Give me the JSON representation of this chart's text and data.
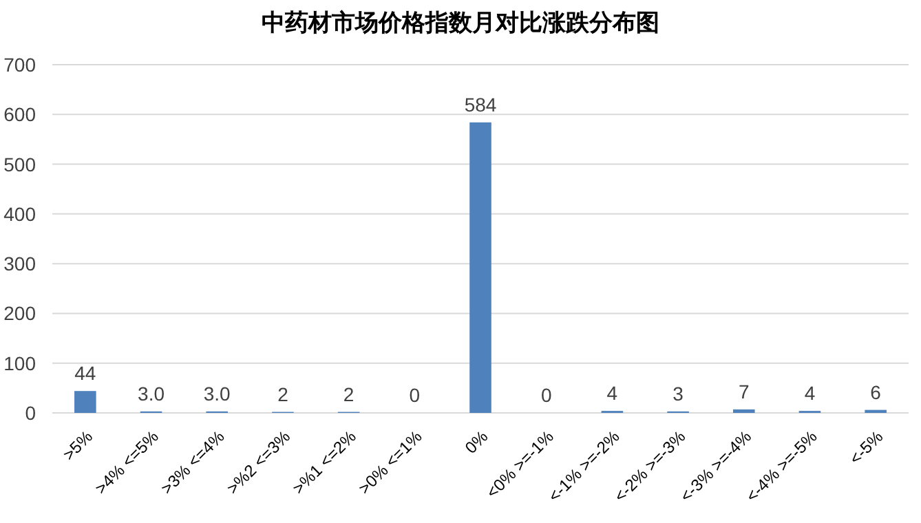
{
  "chart_data": {
    "type": "bar",
    "title": "中药材市场价格指数月对比涨跌分布图",
    "categories": [
      ">5%",
      ">4% <=5%",
      ">3% <=4%",
      ">%2 <=3%",
      ">%1 <=2%",
      ">0% <=1%",
      "0%",
      "<0% >=-1%",
      "<-1% >=-2%",
      "<-2% >=-3%",
      "<-3% >=-4%",
      "<-4% >=-5%",
      "<-5%"
    ],
    "values": [
      44,
      3,
      3,
      2,
      2,
      0,
      584,
      0,
      4,
      3,
      7,
      4,
      6
    ],
    "value_labels": [
      "44",
      "3.0",
      "3.0",
      "2",
      "2",
      "0",
      "584",
      "0",
      "4",
      "3",
      "7",
      "4",
      "6"
    ],
    "color": "#4f81bd",
    "ylim": [
      0,
      700
    ],
    "yticks": [
      0,
      100,
      200,
      300,
      400,
      500,
      600,
      700
    ],
    "grid": "y"
  }
}
